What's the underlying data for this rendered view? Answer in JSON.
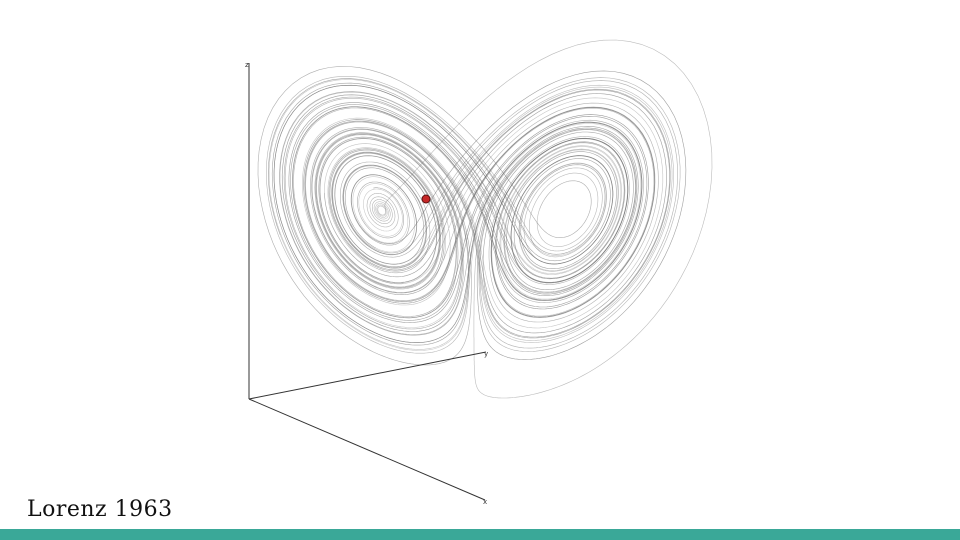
{
  "slide": {
    "caption": "Lorenz 1963",
    "accent_color": "#3aa898"
  },
  "diagram": {
    "type": "lorenz-attractor-3d",
    "axes": {
      "x_label": "x",
      "y_label": "y",
      "z_label": "z"
    },
    "trajectory_color": "#6f6f6f",
    "marker_color": "#c62828"
  }
}
